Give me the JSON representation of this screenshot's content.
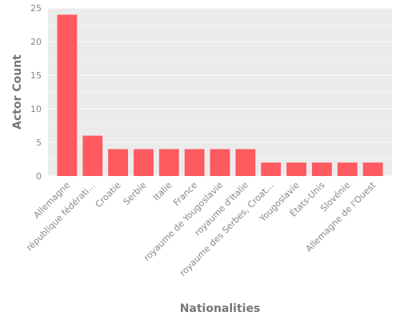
{
  "chart_data": {
    "type": "bar",
    "title": "",
    "xlabel": "Nationalities",
    "ylabel": "Actor Count",
    "ylim": [
      0,
      25
    ],
    "yticks": [
      0,
      5,
      10,
      15,
      20,
      25
    ],
    "grid": true,
    "categories": [
      "Allemagne",
      "république fédérati…",
      "Croatie",
      "Serbie",
      "Italie",
      "France",
      "royaume de Yougoslavie",
      "royaume d'Italie",
      "royaume des Serbes, Croat…",
      "Yougoslavie",
      "États-Unis",
      "Slovénie",
      "Allemagne de l'Ouest"
    ],
    "values": [
      24,
      6,
      4,
      4,
      4,
      4,
      4,
      4,
      2,
      2,
      2,
      2,
      2
    ],
    "colors": {
      "bar": "#ff5a5f",
      "plot_background": "#ebebeb",
      "grid": "#ffffff",
      "text": "#888888",
      "axis_title": "#777777"
    }
  }
}
